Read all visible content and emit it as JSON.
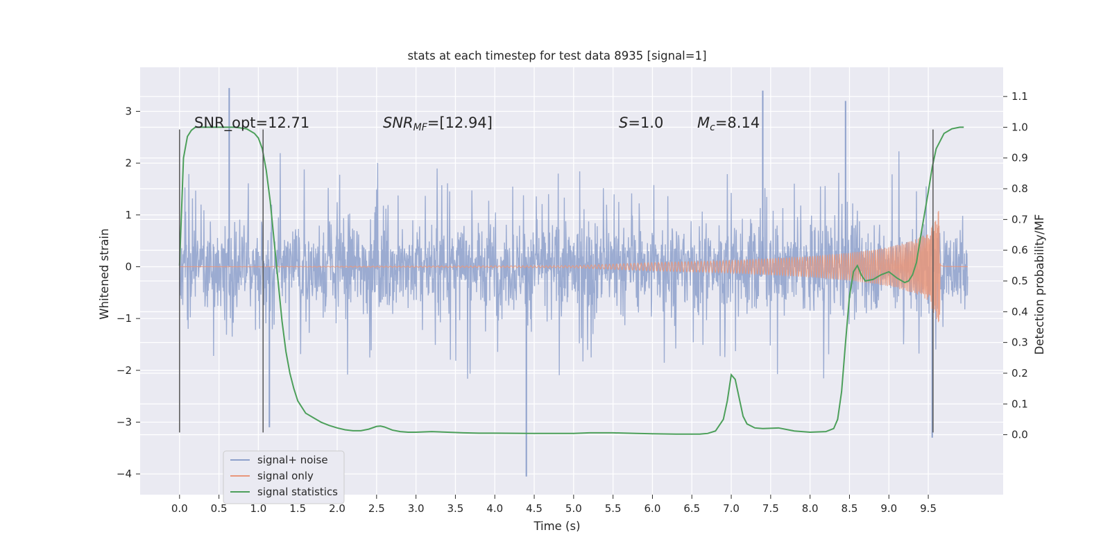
{
  "chart_data": {
    "type": "line",
    "title": "stats at each timestep for test data 8935 [signal=1]",
    "xlabel": "Time (s)",
    "ylabel": "Whitened strain",
    "y2label": "Detection probability/MF",
    "xlim": [
      -0.5,
      10.45
    ],
    "ylim": [
      -4.4,
      3.85
    ],
    "y2lim": [
      -0.195,
      1.195
    ],
    "xticks": [
      "0.0",
      "0.5",
      "1.0",
      "1.5",
      "2.0",
      "2.5",
      "3.0",
      "3.5",
      "4.0",
      "4.5",
      "5.0",
      "5.5",
      "6.0",
      "6.5",
      "7.0",
      "7.5",
      "8.0",
      "8.5",
      "9.0",
      "9.5"
    ],
    "yticks": [
      "−4",
      "−3",
      "−2",
      "−1",
      "0",
      "1",
      "2",
      "3"
    ],
    "y2ticks": [
      "0.0",
      "0.1",
      "0.2",
      "0.3",
      "0.4",
      "0.5",
      "0.6",
      "0.7",
      "0.8",
      "0.9",
      "1.0",
      "1.1"
    ],
    "grid": true,
    "legend_position": "lower-left",
    "annotations": {
      "snr_opt": "SNR_opt=12.71",
      "snr_mf_var": "SNR",
      "snr_mf_sub": "MF",
      "snr_mf_rest": "=[12.94]",
      "s_var": "S",
      "s_rest": "=1.0",
      "mc_var": "M",
      "mc_sub": "c",
      "mc_rest": "=8.14"
    },
    "vertical_markers": [
      {
        "x": 0.0,
        "y_range": [
          -3.2,
          2.65
        ]
      },
      {
        "x": 1.06,
        "y_range": [
          -3.2,
          2.65
        ]
      },
      {
        "x": 9.56,
        "y_range": [
          -3.2,
          2.65
        ]
      }
    ],
    "series": [
      {
        "name": "signal+ noise",
        "color": "#8da0cb",
        "kind": "noise",
        "typical_envelope": [
          -1.4,
          1.5
        ],
        "peaks": [
          {
            "x": 0.63,
            "y": 3.45
          },
          {
            "x": 1.14,
            "y": -3.1
          },
          {
            "x": 4.4,
            "y": -4.05
          },
          {
            "x": 7.4,
            "y": 3.4
          },
          {
            "x": 8.45,
            "y": 3.2
          },
          {
            "x": 9.55,
            "y": -3.3
          }
        ]
      },
      {
        "name": "signal only",
        "color": "#e9967a",
        "kind": "chirp",
        "merger_time": 9.65,
        "amplitude_points": [
          [
            0.0,
            0.0
          ],
          [
            5.0,
            0.02
          ],
          [
            6.0,
            0.08
          ],
          [
            7.0,
            0.12
          ],
          [
            8.0,
            0.2
          ],
          [
            8.5,
            0.27
          ],
          [
            9.0,
            0.38
          ],
          [
            9.3,
            0.5
          ],
          [
            9.5,
            0.65
          ],
          [
            9.6,
            1.0
          ],
          [
            9.64,
            1.1
          ],
          [
            9.66,
            0.2
          ],
          [
            9.7,
            0.05
          ],
          [
            10.0,
            0.0
          ]
        ]
      },
      {
        "name": "signal statistics",
        "color": "#4c9f5a",
        "kind": "probability",
        "x": [
          0.0,
          0.05,
          0.1,
          0.15,
          0.2,
          0.3,
          0.5,
          0.7,
          0.85,
          0.95,
          1.0,
          1.05,
          1.1,
          1.15,
          1.2,
          1.25,
          1.3,
          1.35,
          1.4,
          1.45,
          1.5,
          1.6,
          1.7,
          1.8,
          1.9,
          2.0,
          2.1,
          2.2,
          2.3,
          2.4,
          2.5,
          2.55,
          2.6,
          2.7,
          2.8,
          2.9,
          3.0,
          3.2,
          3.4,
          3.6,
          3.8,
          4.0,
          4.5,
          5.0,
          5.2,
          5.5,
          5.8,
          6.0,
          6.3,
          6.6,
          6.7,
          6.8,
          6.9,
          6.95,
          7.0,
          7.05,
          7.1,
          7.15,
          7.2,
          7.3,
          7.4,
          7.6,
          7.8,
          8.0,
          8.2,
          8.3,
          8.35,
          8.4,
          8.45,
          8.5,
          8.55,
          8.6,
          8.65,
          8.7,
          8.8,
          8.9,
          9.0,
          9.1,
          9.2,
          9.25,
          9.3,
          9.35,
          9.4,
          9.5,
          9.55,
          9.6,
          9.7,
          9.8,
          9.9,
          9.95
        ],
        "values": [
          0.55,
          0.9,
          0.97,
          0.99,
          1.0,
          1.0,
          1.0,
          1.0,
          0.995,
          0.98,
          0.965,
          0.93,
          0.86,
          0.76,
          0.63,
          0.5,
          0.37,
          0.27,
          0.2,
          0.15,
          0.11,
          0.07,
          0.055,
          0.04,
          0.03,
          0.022,
          0.016,
          0.013,
          0.013,
          0.018,
          0.027,
          0.028,
          0.025,
          0.015,
          0.01,
          0.008,
          0.008,
          0.01,
          0.008,
          0.006,
          0.005,
          0.005,
          0.004,
          0.004,
          0.006,
          0.006,
          0.004,
          0.003,
          0.002,
          0.002,
          0.004,
          0.012,
          0.05,
          0.11,
          0.195,
          0.18,
          0.12,
          0.06,
          0.035,
          0.022,
          0.02,
          0.022,
          0.012,
          0.008,
          0.01,
          0.02,
          0.05,
          0.14,
          0.3,
          0.45,
          0.53,
          0.55,
          0.52,
          0.5,
          0.505,
          0.52,
          0.53,
          0.51,
          0.495,
          0.5,
          0.52,
          0.56,
          0.64,
          0.79,
          0.87,
          0.93,
          0.98,
          0.995,
          1.0,
          1.0
        ]
      }
    ]
  }
}
